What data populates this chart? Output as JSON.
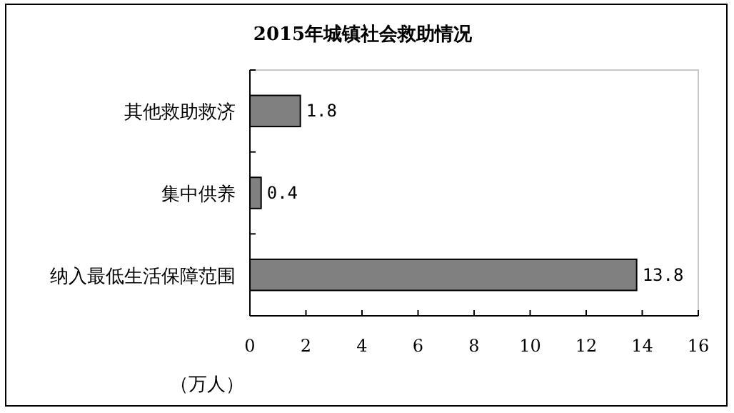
{
  "chart_data": {
    "type": "bar",
    "orientation": "horizontal",
    "title": "2015年城镇社会救助情况",
    "xlabel": "（万人）",
    "categories": [
      "其他救助救济",
      "集中供养",
      "纳入最低生活保障范围"
    ],
    "values": [
      1.8,
      0.4,
      13.8
    ],
    "color": "#808080",
    "data_labels": true,
    "xlim": [
      0,
      16
    ],
    "xticks": [
      0,
      2,
      4,
      6,
      8,
      10,
      12,
      14,
      16
    ],
    "grid": false
  }
}
